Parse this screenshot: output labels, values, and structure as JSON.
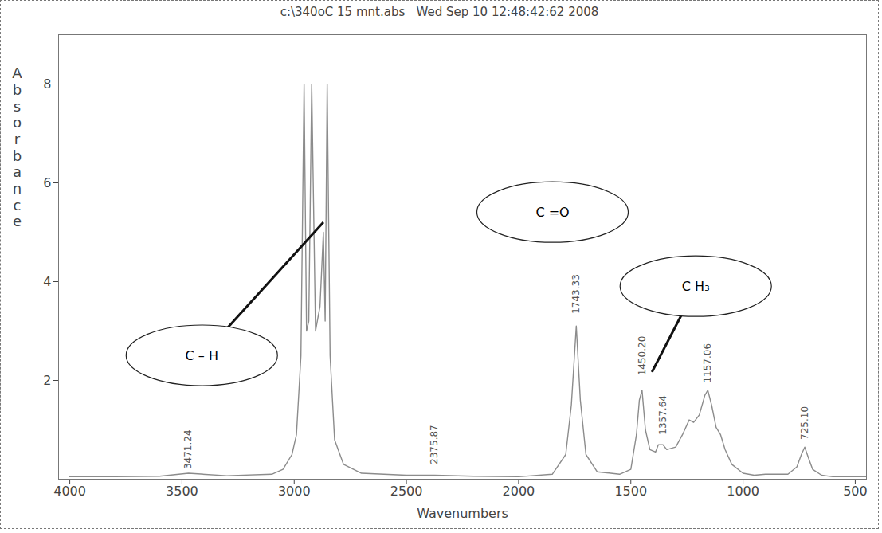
{
  "chart_data": {
    "type": "line",
    "title": "c:\\340oC 15 mnt.abs   Wed Sep 10 12:48:42:62 2008",
    "x_label": "Wavenumbers",
    "y_label": "Absorbance",
    "xlim": [
      4050,
      450
    ],
    "ylim": [
      0,
      9
    ],
    "xticks": [
      4000,
      3500,
      3000,
      2500,
      2000,
      1500,
      1000,
      500
    ],
    "yticks": [
      2,
      4,
      6,
      8
    ],
    "grid": false,
    "color": "#8c8c8c",
    "x": [
      4000,
      3800,
      3600,
      3471,
      3300,
      3100,
      3050,
      3010,
      2990,
      2970,
      2956,
      2945,
      2935,
      2922,
      2905,
      2885,
      2870,
      2862,
      2853,
      2840,
      2820,
      2780,
      2700,
      2500,
      2375,
      2200,
      2000,
      1850,
      1790,
      1765,
      1743,
      1725,
      1700,
      1650,
      1550,
      1500,
      1475,
      1462,
      1450,
      1435,
      1415,
      1390,
      1377,
      1357,
      1340,
      1300,
      1270,
      1240,
      1220,
      1195,
      1170,
      1157,
      1140,
      1120,
      1100,
      1080,
      1050,
      1000,
      950,
      900,
      800,
      760,
      740,
      725,
      710,
      690,
      650,
      600,
      500,
      450
    ],
    "values": [
      0.05,
      0.05,
      0.06,
      0.12,
      0.07,
      0.1,
      0.2,
      0.5,
      0.9,
      2.5,
      8,
      3,
      3.2,
      8,
      3,
      3.5,
      5,
      3.2,
      8,
      2.5,
      0.8,
      0.3,
      0.12,
      0.08,
      0.08,
      0.06,
      0.05,
      0.1,
      0.5,
      1.5,
      3.1,
      1.6,
      0.5,
      0.15,
      0.1,
      0.2,
      0.9,
      1.6,
      1.8,
      1.0,
      0.6,
      0.55,
      0.7,
      0.7,
      0.6,
      0.65,
      0.9,
      1.2,
      1.15,
      1.3,
      1.7,
      1.8,
      1.5,
      1.05,
      0.9,
      0.6,
      0.3,
      0.12,
      0.08,
      0.1,
      0.1,
      0.25,
      0.5,
      0.65,
      0.45,
      0.2,
      0.08,
      0.05,
      0.05,
      0.05
    ],
    "peak_labels": [
      {
        "x": 3471.24,
        "y": 0.2,
        "label": "3471.24"
      },
      {
        "x": 2375.87,
        "y": 0.3,
        "label": "2375.87"
      },
      {
        "x": 1743.33,
        "y": 3.35,
        "label": "1743.33"
      },
      {
        "x": 1450.2,
        "y": 2.1,
        "label": "1450.20"
      },
      {
        "x": 1357.64,
        "y": 0.9,
        "label": "1357.64"
      },
      {
        "x": 1157.06,
        "y": 1.95,
        "label": "1157.06"
      },
      {
        "x": 725.1,
        "y": 0.8,
        "label": "725.10"
      }
    ],
    "annotations": [
      {
        "text": "C – H",
        "x": 3410,
        "y": 2.5,
        "target": [
          2870,
          5.2
        ]
      },
      {
        "text": "C =O",
        "x": 1847,
        "y": 5.4
      },
      {
        "text": "C H₃",
        "x": 1209,
        "y": 3.9,
        "target": [
          1406,
          2.17
        ]
      }
    ]
  }
}
